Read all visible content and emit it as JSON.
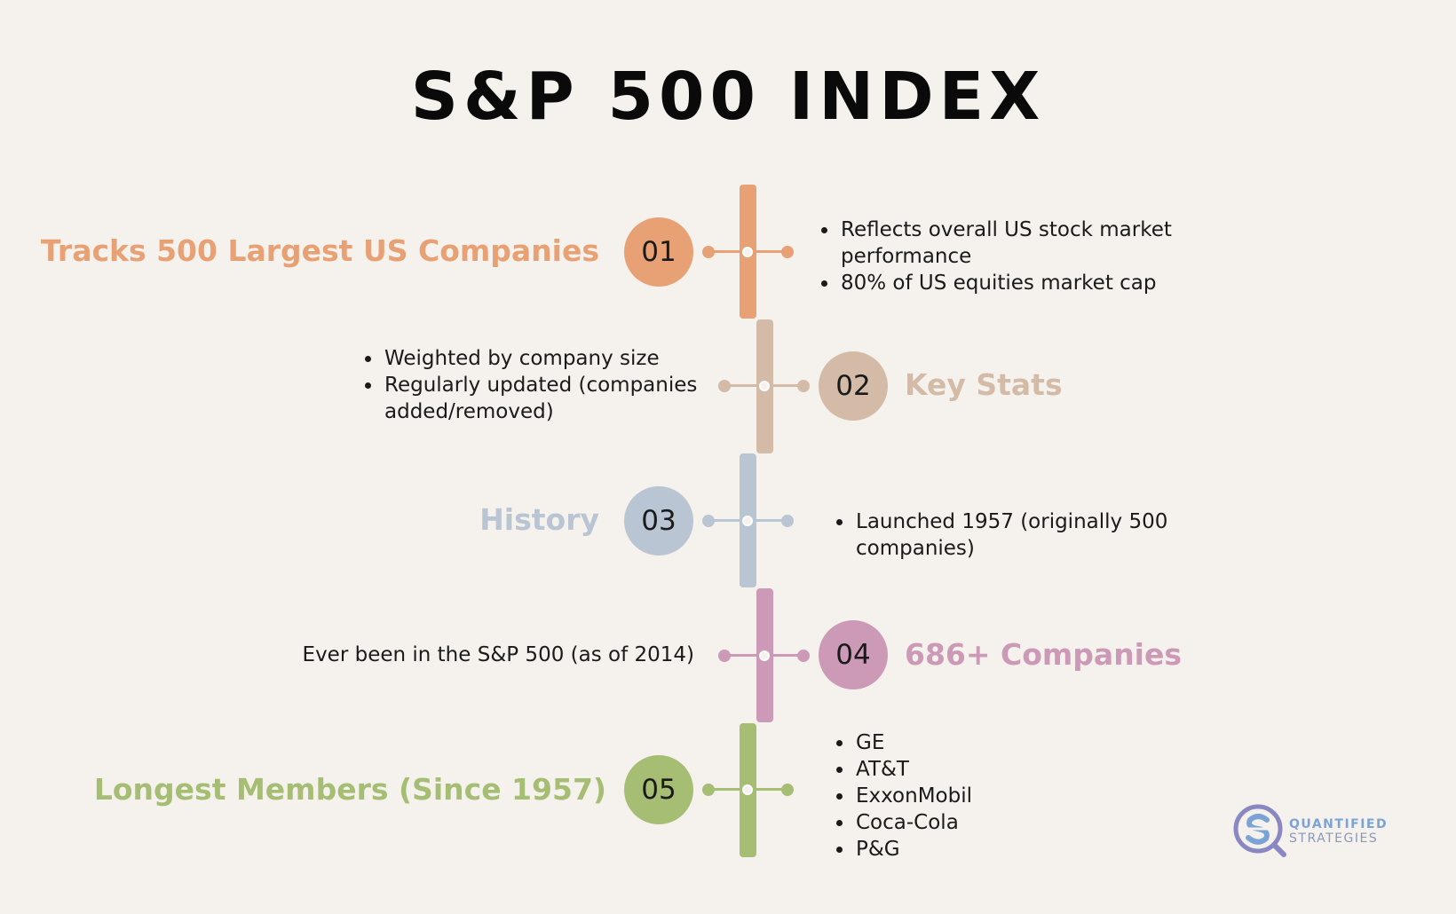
{
  "title": "S&P 500 INDEX",
  "colors": {
    "background": "#f5f2ed",
    "step1": "#e8a075",
    "step2": "#d4bba8",
    "step3": "#b9c5d2",
    "step4": "#cc9ab6",
    "step5": "#a6bd74"
  },
  "steps": [
    {
      "number": "01",
      "heading": "Tracks 500 Largest US Companies",
      "bullets": [
        "Reflects overall US stock market performance",
        "80% of US equities market cap"
      ]
    },
    {
      "number": "02",
      "heading": "Key Stats",
      "bullets": [
        "Weighted by company size",
        "Regularly updated (companies added/removed)"
      ]
    },
    {
      "number": "03",
      "heading": "History",
      "bullets": [
        "Launched 1957 (originally 500 companies)"
      ]
    },
    {
      "number": "04",
      "heading": "686+ Companies",
      "text": "Ever been in the S&P 500 (as of 2014)"
    },
    {
      "number": "05",
      "heading": "Longest Members (Since 1957)",
      "bullets": [
        "GE",
        "AT&T",
        "ExxonMobil",
        "Coca-Cola",
        "P&G"
      ]
    }
  ],
  "logo": {
    "line1": "QUANTIFIED",
    "line2": "STRATEGIES",
    "icon": "magnifier-s-logo-icon"
  }
}
